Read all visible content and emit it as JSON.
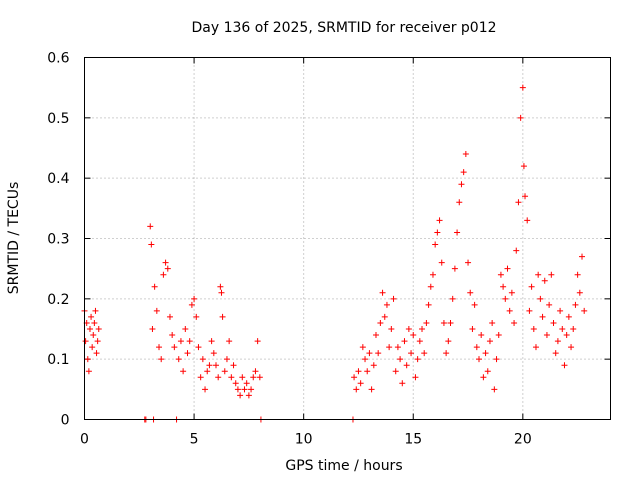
{
  "chart_data": {
    "type": "scatter",
    "title": "Day 136 of 2025, SRMTID for receiver p012",
    "xlabel": "GPS time / hours",
    "ylabel": "SRMTID / TECUs",
    "xlim": [
      0,
      24
    ],
    "ylim": [
      0,
      0.6
    ],
    "xticks": [
      0,
      5,
      10,
      15,
      20
    ],
    "xtick_labels": [
      "0",
      "5",
      "10",
      "15",
      "20"
    ],
    "yticks": [
      0,
      0.1,
      0.2,
      0.3,
      0.4,
      0.5,
      0.6
    ],
    "ytick_labels": [
      "0",
      "0.1",
      "0.2",
      "0.3",
      "0.4",
      "0.5",
      "0.6"
    ],
    "grid": true,
    "marker": "+",
    "color": "#ff0000",
    "series": [
      {
        "name": "SRMTID",
        "points": [
          [
            0.0,
            0.18
          ],
          [
            0.05,
            0.13
          ],
          [
            0.1,
            0.16
          ],
          [
            0.15,
            0.1
          ],
          [
            0.2,
            0.08
          ],
          [
            0.25,
            0.15
          ],
          [
            0.3,
            0.17
          ],
          [
            0.35,
            0.12
          ],
          [
            0.4,
            0.14
          ],
          [
            0.45,
            0.16
          ],
          [
            0.5,
            0.18
          ],
          [
            0.55,
            0.11
          ],
          [
            0.6,
            0.13
          ],
          [
            0.65,
            0.15
          ],
          [
            2.75,
            0.0
          ],
          [
            2.8,
            0.0
          ],
          [
            3.0,
            0.32
          ],
          [
            3.05,
            0.29
          ],
          [
            3.1,
            0.15
          ],
          [
            3.15,
            0.0
          ],
          [
            3.2,
            0.22
          ],
          [
            3.3,
            0.18
          ],
          [
            3.4,
            0.12
          ],
          [
            3.5,
            0.1
          ],
          [
            3.6,
            0.24
          ],
          [
            3.7,
            0.26
          ],
          [
            3.8,
            0.25
          ],
          [
            3.9,
            0.17
          ],
          [
            4.0,
            0.14
          ],
          [
            4.1,
            0.12
          ],
          [
            4.2,
            0.0
          ],
          [
            4.3,
            0.1
          ],
          [
            4.4,
            0.13
          ],
          [
            4.5,
            0.08
          ],
          [
            4.6,
            0.15
          ],
          [
            4.7,
            0.11
          ],
          [
            4.8,
            0.13
          ],
          [
            4.9,
            0.19
          ],
          [
            5.0,
            0.2
          ],
          [
            5.1,
            0.17
          ],
          [
            5.2,
            0.12
          ],
          [
            5.3,
            0.07
          ],
          [
            5.4,
            0.1
          ],
          [
            5.5,
            0.05
          ],
          [
            5.6,
            0.08
          ],
          [
            5.7,
            0.09
          ],
          [
            5.8,
            0.13
          ],
          [
            5.9,
            0.11
          ],
          [
            6.0,
            0.09
          ],
          [
            6.1,
            0.07
          ],
          [
            6.2,
            0.22
          ],
          [
            6.25,
            0.21
          ],
          [
            6.3,
            0.17
          ],
          [
            6.4,
            0.08
          ],
          [
            6.5,
            0.1
          ],
          [
            6.6,
            0.13
          ],
          [
            6.7,
            0.07
          ],
          [
            6.8,
            0.09
          ],
          [
            6.9,
            0.06
          ],
          [
            7.0,
            0.05
          ],
          [
            7.1,
            0.04
          ],
          [
            7.2,
            0.07
          ],
          [
            7.3,
            0.05
          ],
          [
            7.4,
            0.06
          ],
          [
            7.5,
            0.04
          ],
          [
            7.6,
            0.05
          ],
          [
            7.7,
            0.07
          ],
          [
            7.8,
            0.08
          ],
          [
            7.9,
            0.13
          ],
          [
            8.0,
            0.07
          ],
          [
            8.05,
            0.0
          ],
          [
            12.25,
            0.0
          ],
          [
            12.3,
            0.07
          ],
          [
            12.4,
            0.05
          ],
          [
            12.5,
            0.08
          ],
          [
            12.6,
            0.06
          ],
          [
            12.7,
            0.12
          ],
          [
            12.8,
            0.1
          ],
          [
            12.9,
            0.08
          ],
          [
            13.0,
            0.11
          ],
          [
            13.1,
            0.05
          ],
          [
            13.2,
            0.09
          ],
          [
            13.3,
            0.14
          ],
          [
            13.4,
            0.11
          ],
          [
            13.5,
            0.16
          ],
          [
            13.6,
            0.21
          ],
          [
            13.7,
            0.17
          ],
          [
            13.8,
            0.19
          ],
          [
            13.9,
            0.12
          ],
          [
            14.0,
            0.15
          ],
          [
            14.1,
            0.2
          ],
          [
            14.2,
            0.08
          ],
          [
            14.3,
            0.12
          ],
          [
            14.4,
            0.1
          ],
          [
            14.5,
            0.06
          ],
          [
            14.6,
            0.13
          ],
          [
            14.7,
            0.09
          ],
          [
            14.8,
            0.15
          ],
          [
            14.9,
            0.11
          ],
          [
            15.0,
            0.14
          ],
          [
            15.1,
            0.07
          ],
          [
            15.2,
            0.1
          ],
          [
            15.3,
            0.13
          ],
          [
            15.4,
            0.15
          ],
          [
            15.5,
            0.11
          ],
          [
            15.6,
            0.16
          ],
          [
            15.7,
            0.19
          ],
          [
            15.8,
            0.22
          ],
          [
            15.9,
            0.24
          ],
          [
            16.0,
            0.29
          ],
          [
            16.1,
            0.31
          ],
          [
            16.2,
            0.33
          ],
          [
            16.3,
            0.26
          ],
          [
            16.4,
            0.16
          ],
          [
            16.5,
            0.11
          ],
          [
            16.6,
            0.13
          ],
          [
            16.7,
            0.16
          ],
          [
            16.8,
            0.2
          ],
          [
            16.9,
            0.25
          ],
          [
            17.0,
            0.31
          ],
          [
            17.1,
            0.36
          ],
          [
            17.2,
            0.39
          ],
          [
            17.3,
            0.41
          ],
          [
            17.4,
            0.44
          ],
          [
            17.5,
            0.26
          ],
          [
            17.6,
            0.21
          ],
          [
            17.7,
            0.15
          ],
          [
            17.8,
            0.19
          ],
          [
            17.9,
            0.12
          ],
          [
            18.0,
            0.1
          ],
          [
            18.1,
            0.14
          ],
          [
            18.2,
            0.07
          ],
          [
            18.3,
            0.11
          ],
          [
            18.4,
            0.08
          ],
          [
            18.5,
            0.13
          ],
          [
            18.6,
            0.16
          ],
          [
            18.7,
            0.05
          ],
          [
            18.8,
            0.1
          ],
          [
            18.9,
            0.14
          ],
          [
            19.0,
            0.24
          ],
          [
            19.1,
            0.22
          ],
          [
            19.2,
            0.2
          ],
          [
            19.3,
            0.25
          ],
          [
            19.4,
            0.18
          ],
          [
            19.5,
            0.21
          ],
          [
            19.6,
            0.16
          ],
          [
            19.7,
            0.28
          ],
          [
            19.8,
            0.36
          ],
          [
            19.9,
            0.5
          ],
          [
            20.0,
            0.55
          ],
          [
            20.05,
            0.42
          ],
          [
            20.1,
            0.37
          ],
          [
            20.2,
            0.33
          ],
          [
            20.3,
            0.18
          ],
          [
            20.4,
            0.22
          ],
          [
            20.5,
            0.15
          ],
          [
            20.6,
            0.12
          ],
          [
            20.7,
            0.24
          ],
          [
            20.8,
            0.2
          ],
          [
            20.9,
            0.17
          ],
          [
            21.0,
            0.23
          ],
          [
            21.1,
            0.14
          ],
          [
            21.2,
            0.19
          ],
          [
            21.3,
            0.24
          ],
          [
            21.4,
            0.16
          ],
          [
            21.5,
            0.11
          ],
          [
            21.6,
            0.13
          ],
          [
            21.7,
            0.18
          ],
          [
            21.8,
            0.15
          ],
          [
            21.9,
            0.09
          ],
          [
            22.0,
            0.14
          ],
          [
            22.1,
            0.17
          ],
          [
            22.2,
            0.12
          ],
          [
            22.3,
            0.15
          ],
          [
            22.4,
            0.19
          ],
          [
            22.5,
            0.24
          ],
          [
            22.6,
            0.21
          ],
          [
            22.7,
            0.27
          ],
          [
            22.8,
            0.18
          ]
        ]
      }
    ]
  }
}
